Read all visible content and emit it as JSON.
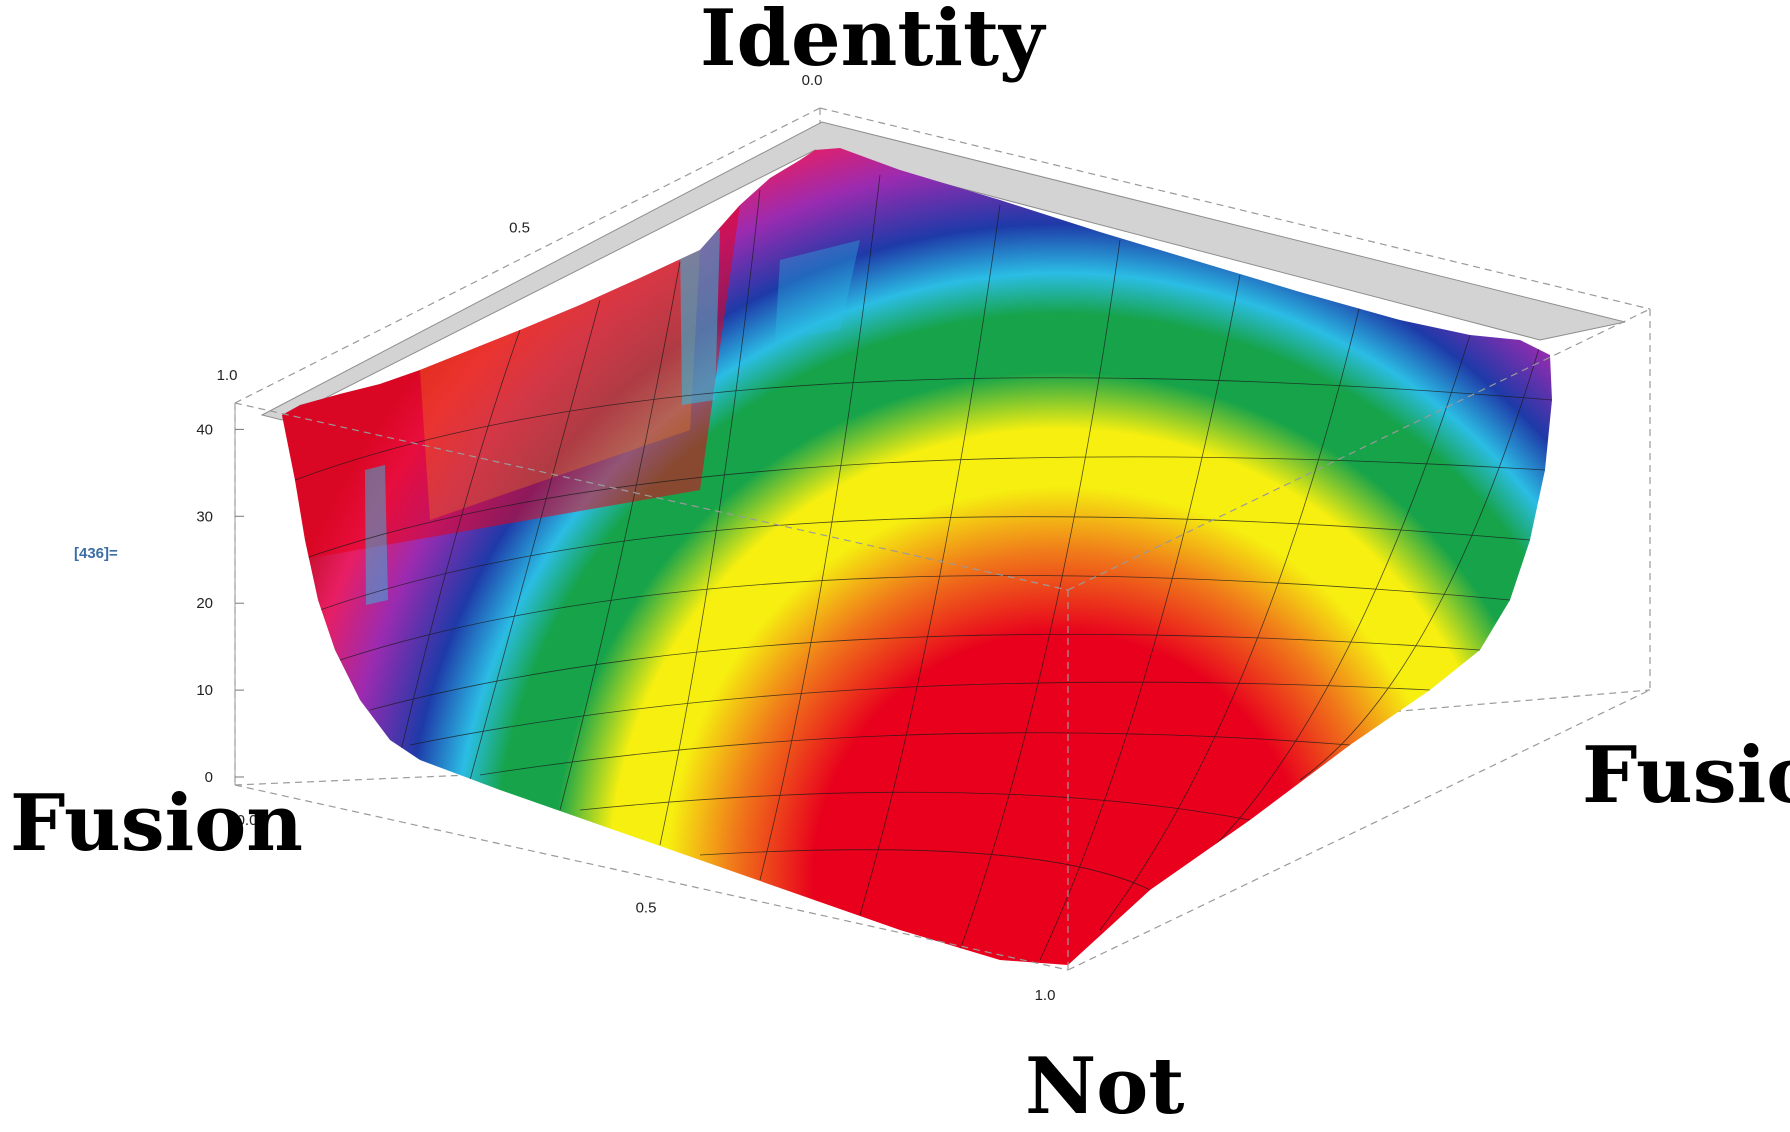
{
  "cell_label": "[436]=",
  "corner_labels": {
    "top": "Identity",
    "left": "Fusion",
    "right": "Fusion",
    "bottom": "Not"
  },
  "colors": {
    "surface_scale": [
      "#e8001c",
      "#f07a1a",
      "#f6ef10",
      "#16a34a",
      "#2bbde4",
      "#1e3aa8",
      "#9b2bb0",
      "#e81e63",
      "#c8102e"
    ],
    "box_edge": "#9a9a9a",
    "base_floor": "#d3d3d3",
    "mesh": "#1a1a1a",
    "cell_label": "#3a6ea5"
  },
  "chart_data": {
    "type": "surface3d",
    "title": "",
    "x_axis": {
      "label": "",
      "ticks": [
        "0.0",
        "0.5",
        "1.0"
      ],
      "range": [
        0,
        1
      ]
    },
    "y_axis": {
      "label": "",
      "ticks": [
        "0.0",
        "0.5",
        "1.0"
      ],
      "range": [
        0,
        1
      ]
    },
    "z_axis": {
      "label": "",
      "ticks": [
        "0",
        "10",
        "20",
        "30",
        "40"
      ],
      "range": [
        0,
        42
      ]
    },
    "surface": {
      "description_of_shape": "bowl: minimum near 0 at the 'Not' corner, rising to about 40 along the two far edges",
      "min_value": 0,
      "max_value": 40,
      "grid_lines_per_axis": 20
    },
    "grid": true,
    "legend": "none"
  }
}
